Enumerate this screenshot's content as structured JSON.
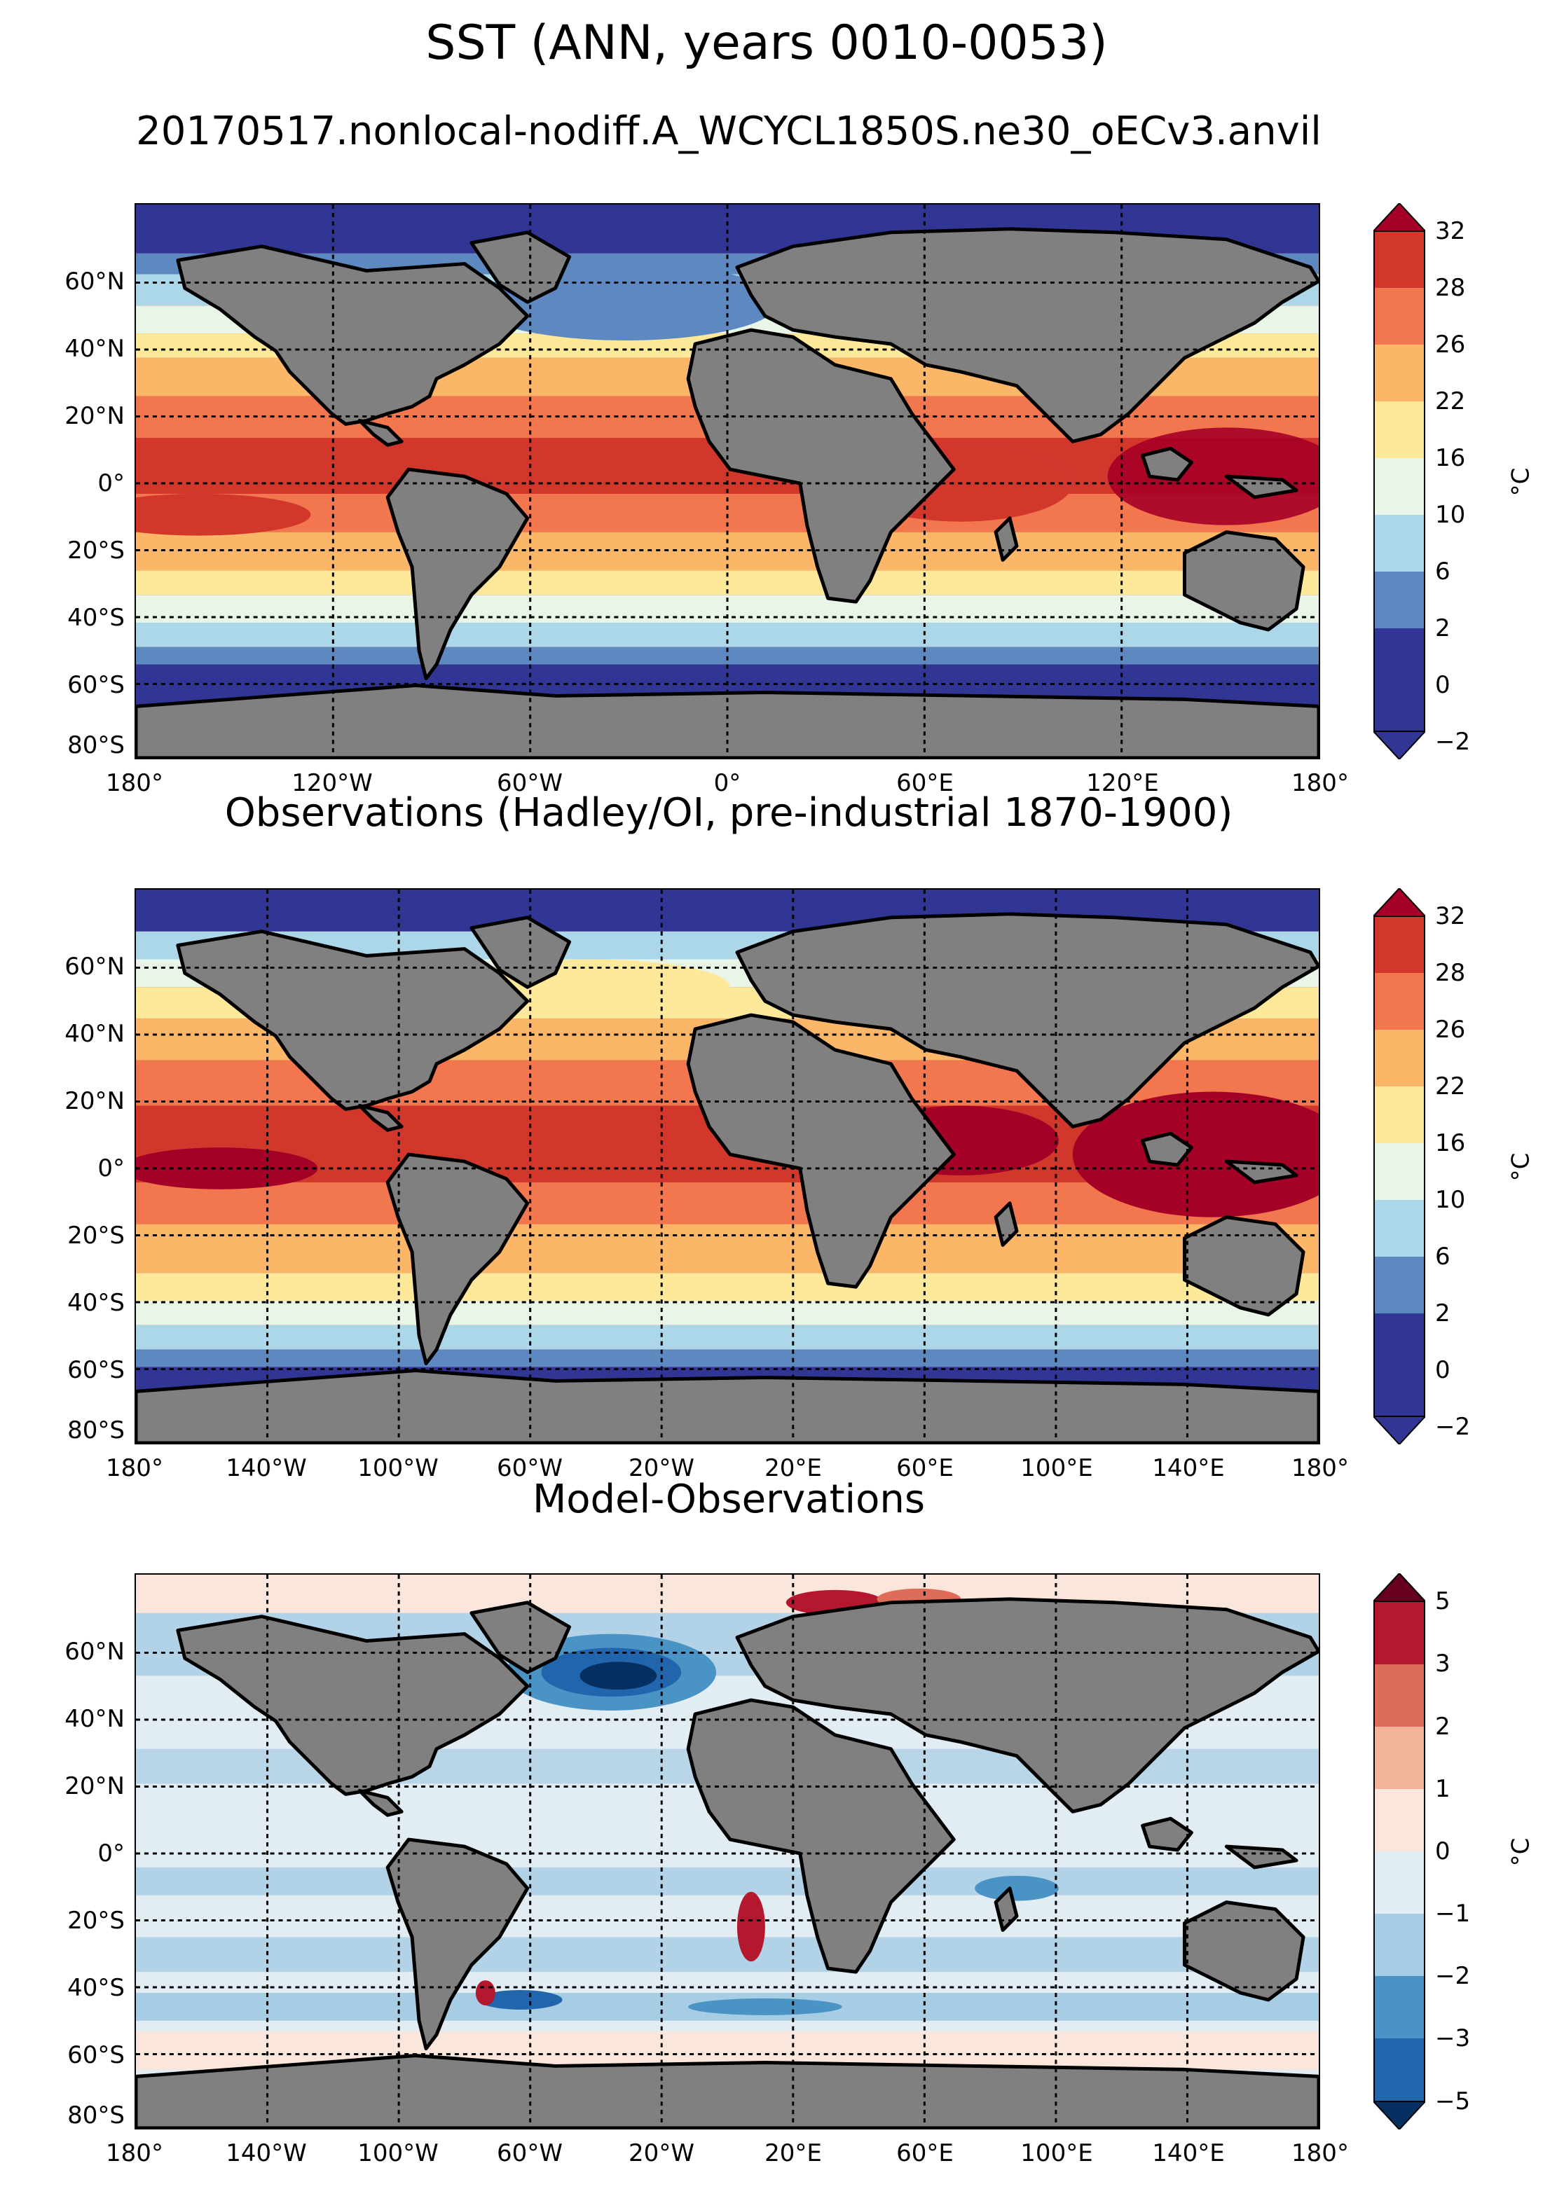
{
  "title": "SST (ANN, years 0010-0053)",
  "colors": {
    "land": "#808080",
    "abs_levels": [
      "#313695",
      "#5d88c0",
      "#abd7e8",
      "#e9f5e6",
      "#fee99a",
      "#fcb668",
      "#f2774f",
      "#d2372c",
      "#a50026"
    ],
    "diff_levels": [
      "#053061",
      "#2166ac",
      "#4a93c5",
      "#a6cde3",
      "#e2ecf3",
      "#fae6da",
      "#f3b29a",
      "#dd6d59",
      "#b5172f",
      "#67001f"
    ]
  },
  "panels": [
    {
      "id": "model",
      "title": "20170517.nonlocal-nodiff.A_WCYCL1850S.ne30_oECv3.anvil",
      "lat_ticks": [
        "60°N",
        "40°N",
        "20°N",
        "0°",
        "20°S",
        "40°S",
        "60°S",
        "80°S"
      ],
      "lon_ticks": [
        "180°",
        "120°W",
        "60°W",
        "0°",
        "60°E",
        "120°E",
        "180°"
      ],
      "colorbar": {
        "ticks": [
          "32",
          "28",
          "26",
          "22",
          "16",
          "10",
          "6",
          "2",
          "0",
          "−2"
        ],
        "unit": "°C"
      }
    },
    {
      "id": "obs",
      "title": "Observations (Hadley/OI, pre-industrial 1870-1900)",
      "lat_ticks": [
        "60°N",
        "40°N",
        "20°N",
        "0°",
        "20°S",
        "40°S",
        "60°S",
        "80°S"
      ],
      "lon_ticks": [
        "180°",
        "140°W",
        "100°W",
        "60°W",
        "20°W",
        "20°E",
        "60°E",
        "100°E",
        "140°E",
        "180°"
      ],
      "colorbar": {
        "ticks": [
          "32",
          "28",
          "26",
          "22",
          "16",
          "10",
          "6",
          "2",
          "0",
          "−2"
        ],
        "unit": "°C"
      }
    },
    {
      "id": "diff",
      "title": "Model-Observations",
      "lat_ticks": [
        "60°N",
        "40°N",
        "20°N",
        "0°",
        "20°S",
        "40°S",
        "60°S",
        "80°S"
      ],
      "lon_ticks": [
        "180°",
        "140°W",
        "100°W",
        "60°W",
        "20°W",
        "20°E",
        "60°E",
        "100°E",
        "140°E",
        "180°"
      ],
      "colorbar": {
        "ticks": [
          "5",
          "3",
          "2",
          "1",
          "0",
          "−1",
          "−2",
          "−3",
          "−5"
        ],
        "unit": "°C"
      }
    }
  ]
}
